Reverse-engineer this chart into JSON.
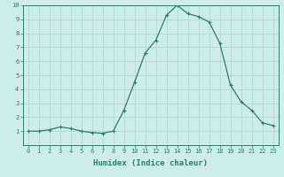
{
  "x": [
    0,
    1,
    2,
    3,
    4,
    5,
    6,
    7,
    8,
    9,
    10,
    11,
    12,
    13,
    14,
    15,
    16,
    17,
    18,
    19,
    20,
    21,
    22,
    23
  ],
  "y": [
    1.0,
    1.0,
    1.1,
    1.3,
    1.2,
    1.0,
    0.9,
    0.85,
    1.0,
    2.5,
    4.5,
    6.6,
    7.5,
    9.3,
    10.0,
    9.4,
    9.2,
    8.8,
    7.3,
    4.3,
    3.1,
    2.5,
    1.6,
    1.4
  ],
  "line_color": "#2d7d6e",
  "marker": "+",
  "marker_size": 3,
  "bg_color": "#ceecea",
  "grid_color": "#b0d8d4",
  "xlabel": "Humidex (Indice chaleur)",
  "xlim": [
    0,
    23
  ],
  "ylim": [
    0,
    10
  ],
  "xticks": [
    0,
    1,
    2,
    3,
    4,
    5,
    6,
    7,
    8,
    9,
    10,
    11,
    12,
    13,
    14,
    15,
    16,
    17,
    18,
    19,
    20,
    21,
    22,
    23
  ],
  "yticks": [
    1,
    2,
    3,
    4,
    5,
    6,
    7,
    8,
    9,
    10
  ]
}
